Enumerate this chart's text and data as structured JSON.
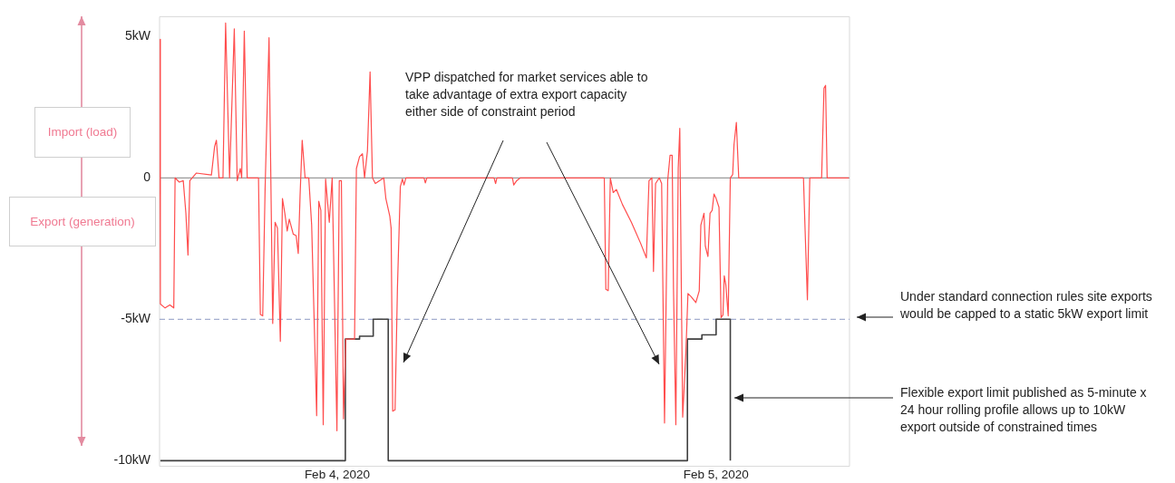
{
  "chart_data": {
    "type": "line",
    "xlim": [
      "2020-02-03T12:45",
      "2020-02-05T08:27"
    ],
    "xticks": [
      {
        "value": "2020-02-04",
        "label": "Feb 4, 2020"
      },
      {
        "value": "2020-02-05",
        "label": "Feb 5, 2020"
      }
    ],
    "ylim": [
      -10.2,
      5.7
    ],
    "yticks": [
      {
        "value": 5,
        "label": "5kW"
      },
      0,
      {
        "value": -5,
        "label": "-5kW"
      },
      {
        "value": -10,
        "label": "-10kW"
      }
    ],
    "grid": false,
    "legend": false,
    "marker": "none",
    "line_style": "solid",
    "series": [
      {
        "color": "#ff4d4d",
        "x": [
          "2020-02-03T12:46",
          "2020-02-03T12:48",
          "2020-02-03T13:06",
          "2020-02-03T13:24",
          "2020-02-03T13:39",
          "2020-02-03T13:44",
          "2020-02-03T14:00",
          "2020-02-03T14:15",
          "2020-02-03T14:25",
          "2020-02-03T14:33",
          "2020-02-03T14:40",
          "2020-02-03T15:05",
          "2020-02-03T16:02",
          "2020-02-03T16:14",
          "2020-02-03T16:21",
          "2020-02-03T16:31",
          "2020-02-03T16:46",
          "2020-02-03T16:56",
          "2020-02-03T17:11",
          "2020-02-03T17:29",
          "2020-02-03T17:40",
          "2020-02-03T17:52",
          "2020-02-03T17:57",
          "2020-02-03T18:07",
          "2020-02-03T18:18",
          "2020-02-03T19:01",
          "2020-02-03T19:08",
          "2020-02-03T19:17",
          "2020-02-03T19:26",
          "2020-02-03T19:41",
          "2020-02-03T19:55",
          "2020-02-03T20:04",
          "2020-02-03T20:13",
          "2020-02-03T20:24",
          "2020-02-03T20:32",
          "2020-02-03T20:41",
          "2020-02-03T20:50",
          "2020-02-03T20:58",
          "2020-02-03T21:13",
          "2020-02-03T21:24",
          "2020-02-03T21:32",
          "2020-02-03T21:39",
          "2020-02-03T21:47",
          "2020-02-03T21:58",
          "2020-02-03T22:12",
          "2020-02-03T22:23",
          "2020-02-03T22:42",
          "2020-02-03T22:50",
          "2020-02-03T22:58",
          "2020-02-03T23:07",
          "2020-02-03T23:16",
          "2020-02-03T23:30",
          "2020-02-03T23:41",
          "2020-02-03T23:59",
          "2020-02-04T00:08",
          "2020-02-04T00:16",
          "2020-02-04T00:24",
          "2020-02-04T00:33",
          "2020-02-04T01:06",
          "2020-02-04T01:13",
          "2020-02-04T01:25",
          "2020-02-04T01:36",
          "2020-02-04T01:44",
          "2020-02-04T01:55",
          "2020-02-04T02:05",
          "2020-02-04T02:14",
          "2020-02-04T02:25",
          "2020-02-04T02:57",
          "2020-02-04T03:05",
          "2020-02-04T03:20",
          "2020-02-04T03:25",
          "2020-02-04T03:31",
          "2020-02-04T03:40",
          "2020-02-04T03:49",
          "2020-02-04T04:00",
          "2020-02-04T04:08",
          "2020-02-04T04:14",
          "2020-02-04T04:21",
          "2020-02-04T05:30",
          "2020-02-04T05:35",
          "2020-02-04T05:41",
          "2020-02-04T09:56",
          "2020-02-04T10:02",
          "2020-02-04T10:07",
          "2020-02-04T11:06",
          "2020-02-04T11:11",
          "2020-02-04T11:22",
          "2020-02-04T11:36",
          "2020-02-04T16:55",
          "2020-02-04T17:01",
          "2020-02-04T17:10",
          "2020-02-04T17:18",
          "2020-02-04T17:29",
          "2020-02-04T17:41",
          "2020-02-04T18:04",
          "2020-02-04T18:38",
          "2020-02-04T19:13",
          "2020-02-04T19:35",
          "2020-02-04T19:45",
          "2020-02-04T19:56",
          "2020-02-04T20:02",
          "2020-02-04T20:10",
          "2020-02-04T20:24",
          "2020-02-04T20:33",
          "2020-02-04T20:44",
          "2020-02-04T20:56",
          "2020-02-04T21:05",
          "2020-02-04T21:13",
          "2020-02-04T21:18",
          "2020-02-04T21:27",
          "2020-02-04T21:36",
          "2020-02-04T21:42",
          "2020-02-04T21:48",
          "2020-02-04T21:53",
          "2020-02-04T22:05",
          "2020-02-04T22:13",
          "2020-02-04T22:25",
          "2020-02-04T22:43",
          "2020-02-04T22:56",
          "2020-02-04T23:02",
          "2020-02-04T23:14",
          "2020-02-04T23:19",
          "2020-02-04T23:29",
          "2020-02-04T23:37",
          "2020-02-04T23:45",
          "2020-02-04T23:52",
          "2020-02-05T00:00",
          "2020-02-05T00:11",
          "2020-02-05T00:19",
          "2020-02-05T00:26",
          "2020-02-05T00:31",
          "2020-02-05T00:37",
          "2020-02-05T00:46",
          "2020-02-05T00:54",
          "2020-02-05T01:03",
          "2020-02-05T01:08",
          "2020-02-05T01:17",
          "2020-02-05T01:26",
          "2020-02-05T05:32",
          "2020-02-05T05:38",
          "2020-02-05T05:47",
          "2020-02-05T05:56",
          "2020-02-05T06:41",
          "2020-02-05T06:50",
          "2020-02-05T06:56",
          "2020-02-05T07:02",
          "2020-02-05T08:24"
        ],
        "values": [
          4.9,
          -4.46,
          -4.6,
          -4.49,
          -4.6,
          0,
          -0.15,
          -0.1,
          -1.25,
          -2.73,
          -0.1,
          0.17,
          0.1,
          1.1,
          1.33,
          0,
          0,
          5.48,
          0,
          5.27,
          -0.1,
          0.33,
          0,
          5.19,
          0,
          0,
          -4.83,
          -4.88,
          -0.41,
          4.96,
          -5.15,
          -1.57,
          -1.78,
          -5.78,
          -0.73,
          -1.25,
          -1.88,
          -1.46,
          -1.99,
          -2.04,
          -2.67,
          -0.62,
          1.33,
          0,
          0,
          -1.67,
          -8.41,
          -0.83,
          -1.15,
          -8.73,
          -0.04,
          -1.57,
          0,
          -8.94,
          -0.1,
          -0.1,
          -8.52,
          -5.7,
          -5.7,
          0.33,
          0.75,
          0.85,
          0,
          0.96,
          3.75,
          0,
          -0.2,
          0,
          -0.73,
          -1.36,
          -1.78,
          -8.25,
          -8.2,
          -3.88,
          -0.31,
          -0.04,
          -0.25,
          0,
          0,
          -0.18,
          0,
          0,
          -0.2,
          0,
          0,
          -0.25,
          -0.1,
          0,
          0,
          -3.94,
          -3.99,
          0,
          -0.52,
          -0.41,
          -0.94,
          -1.57,
          -2.31,
          -2.83,
          -0.1,
          0,
          -3.31,
          -0.2,
          0,
          -0.2,
          -8.67,
          -0.1,
          0.8,
          0.8,
          -3.9,
          -8.73,
          0.33,
          1.75,
          -4.0,
          -8.46,
          -6.2,
          -4.09,
          -4.2,
          -4.41,
          -3.99,
          -1.67,
          -1.25,
          -2.41,
          -2.78,
          -1.25,
          -1.15,
          -0.57,
          -0.73,
          -1.04,
          -4.94,
          -4.85,
          -3.46,
          -3.78,
          -4.88,
          0,
          0.12,
          1.17,
          1.96,
          0,
          0,
          -1.78,
          -4.31,
          0,
          0,
          3.17,
          3.27,
          0,
          0
        ]
      },
      {
        "type": "step",
        "color": "#404040",
        "x": [
          "2020-02-03T12:48",
          "2020-02-04T00:31",
          "2020-02-04T01:25",
          "2020-02-04T02:17",
          "2020-02-04T03:14",
          "2020-02-04T22:11",
          "2020-02-04T23:06",
          "2020-02-05T00:00",
          "2020-02-05T00:54"
        ],
        "values": [
          -10,
          -5.7,
          -5.6,
          -5,
          -10,
          -5.7,
          -5.55,
          -5,
          -10
        ]
      }
    ],
    "ref_lines": [
      {
        "axis": "y",
        "value": 0,
        "color": "#808080",
        "line_style": "solid"
      },
      {
        "axis": "y",
        "value": -5,
        "color": "#8f9bc4",
        "line_style": "dashed"
      }
    ],
    "annotations": [
      "Import (load)",
      "Export (generation)",
      "VPP dispatched for market services able to take advantage of extra export capacity either side of constraint period",
      "Under standard connection rules site exports would be capped to a static 5kW export limit",
      "Flexible export limit published as 5-minute x 24 hour rolling profile allows up to 10kW export outside of constrained times"
    ]
  }
}
